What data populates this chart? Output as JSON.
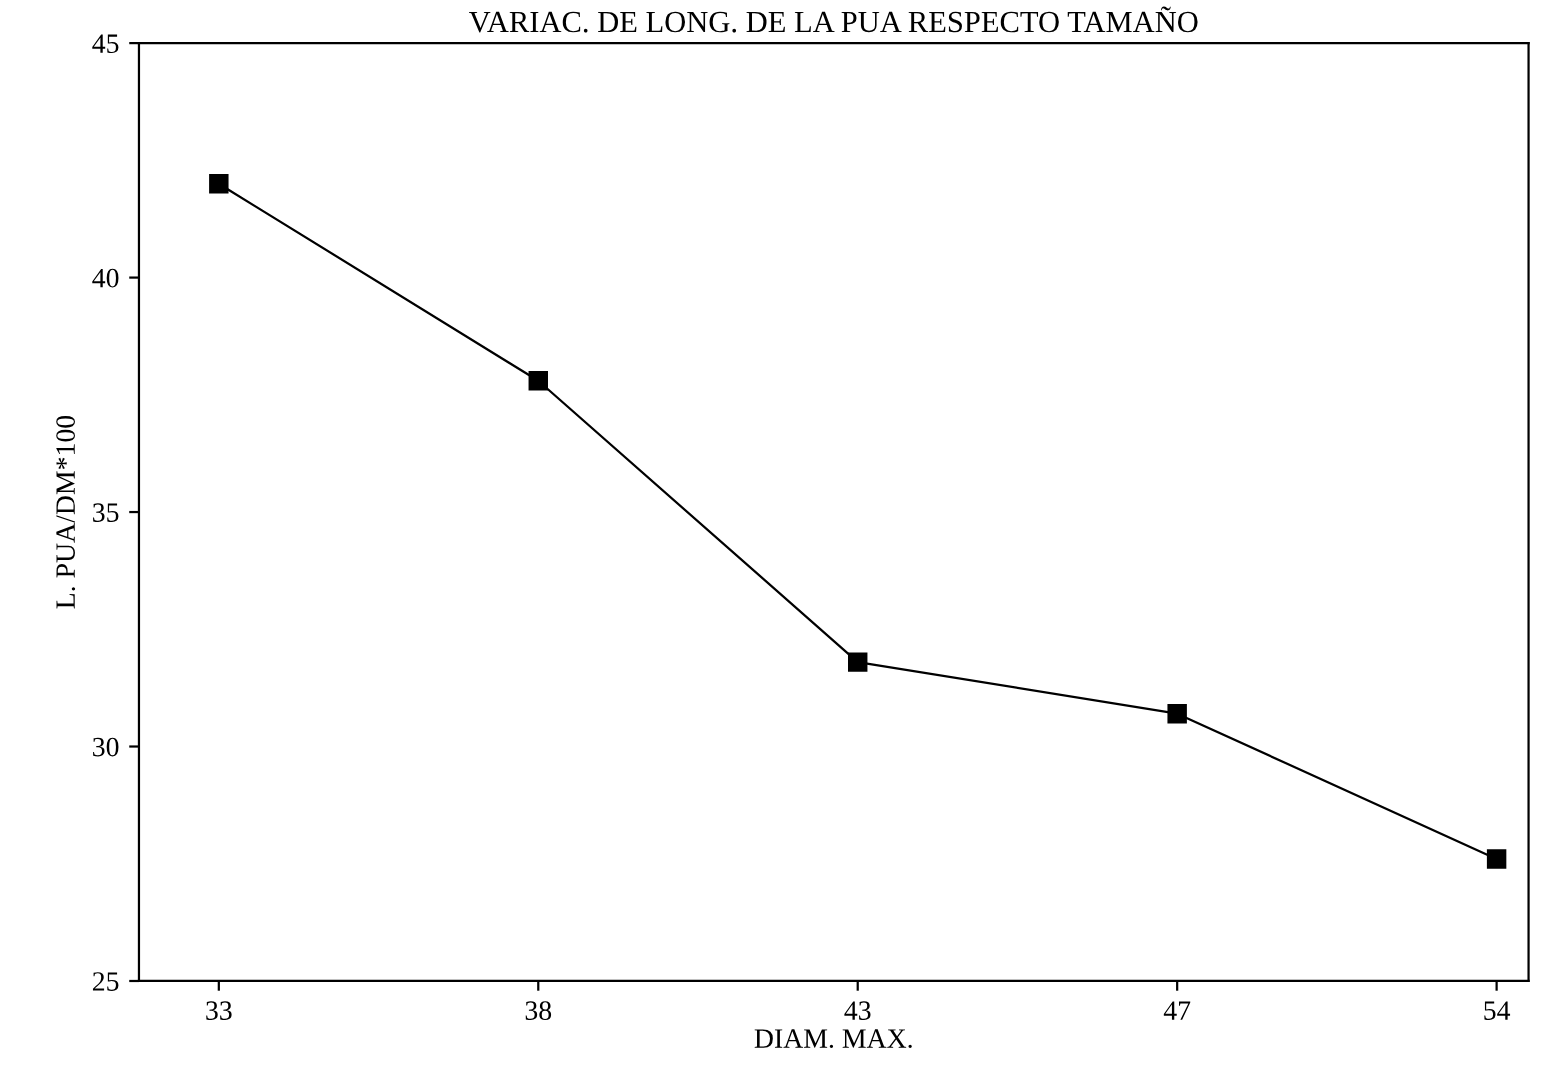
{
  "chart_data": {
    "type": "line",
    "title": "VARIAC. DE LONG. DE LA PUA RESPECTO TAMAÑO",
    "xlabel": "DIAM. MAX.",
    "ylabel": "L. PUA/DM*100",
    "categories": [
      "33",
      "38",
      "43",
      "47",
      "54"
    ],
    "series": [
      {
        "color": "#000000",
        "values": [
          42.0,
          37.8,
          31.8,
          30.7,
          27.6
        ]
      }
    ],
    "ylim": [
      25,
      45
    ],
    "yticks": [
      25,
      30,
      35,
      40,
      45
    ],
    "marker": "square",
    "line_style": "solid",
    "grid": false,
    "legend": false
  }
}
